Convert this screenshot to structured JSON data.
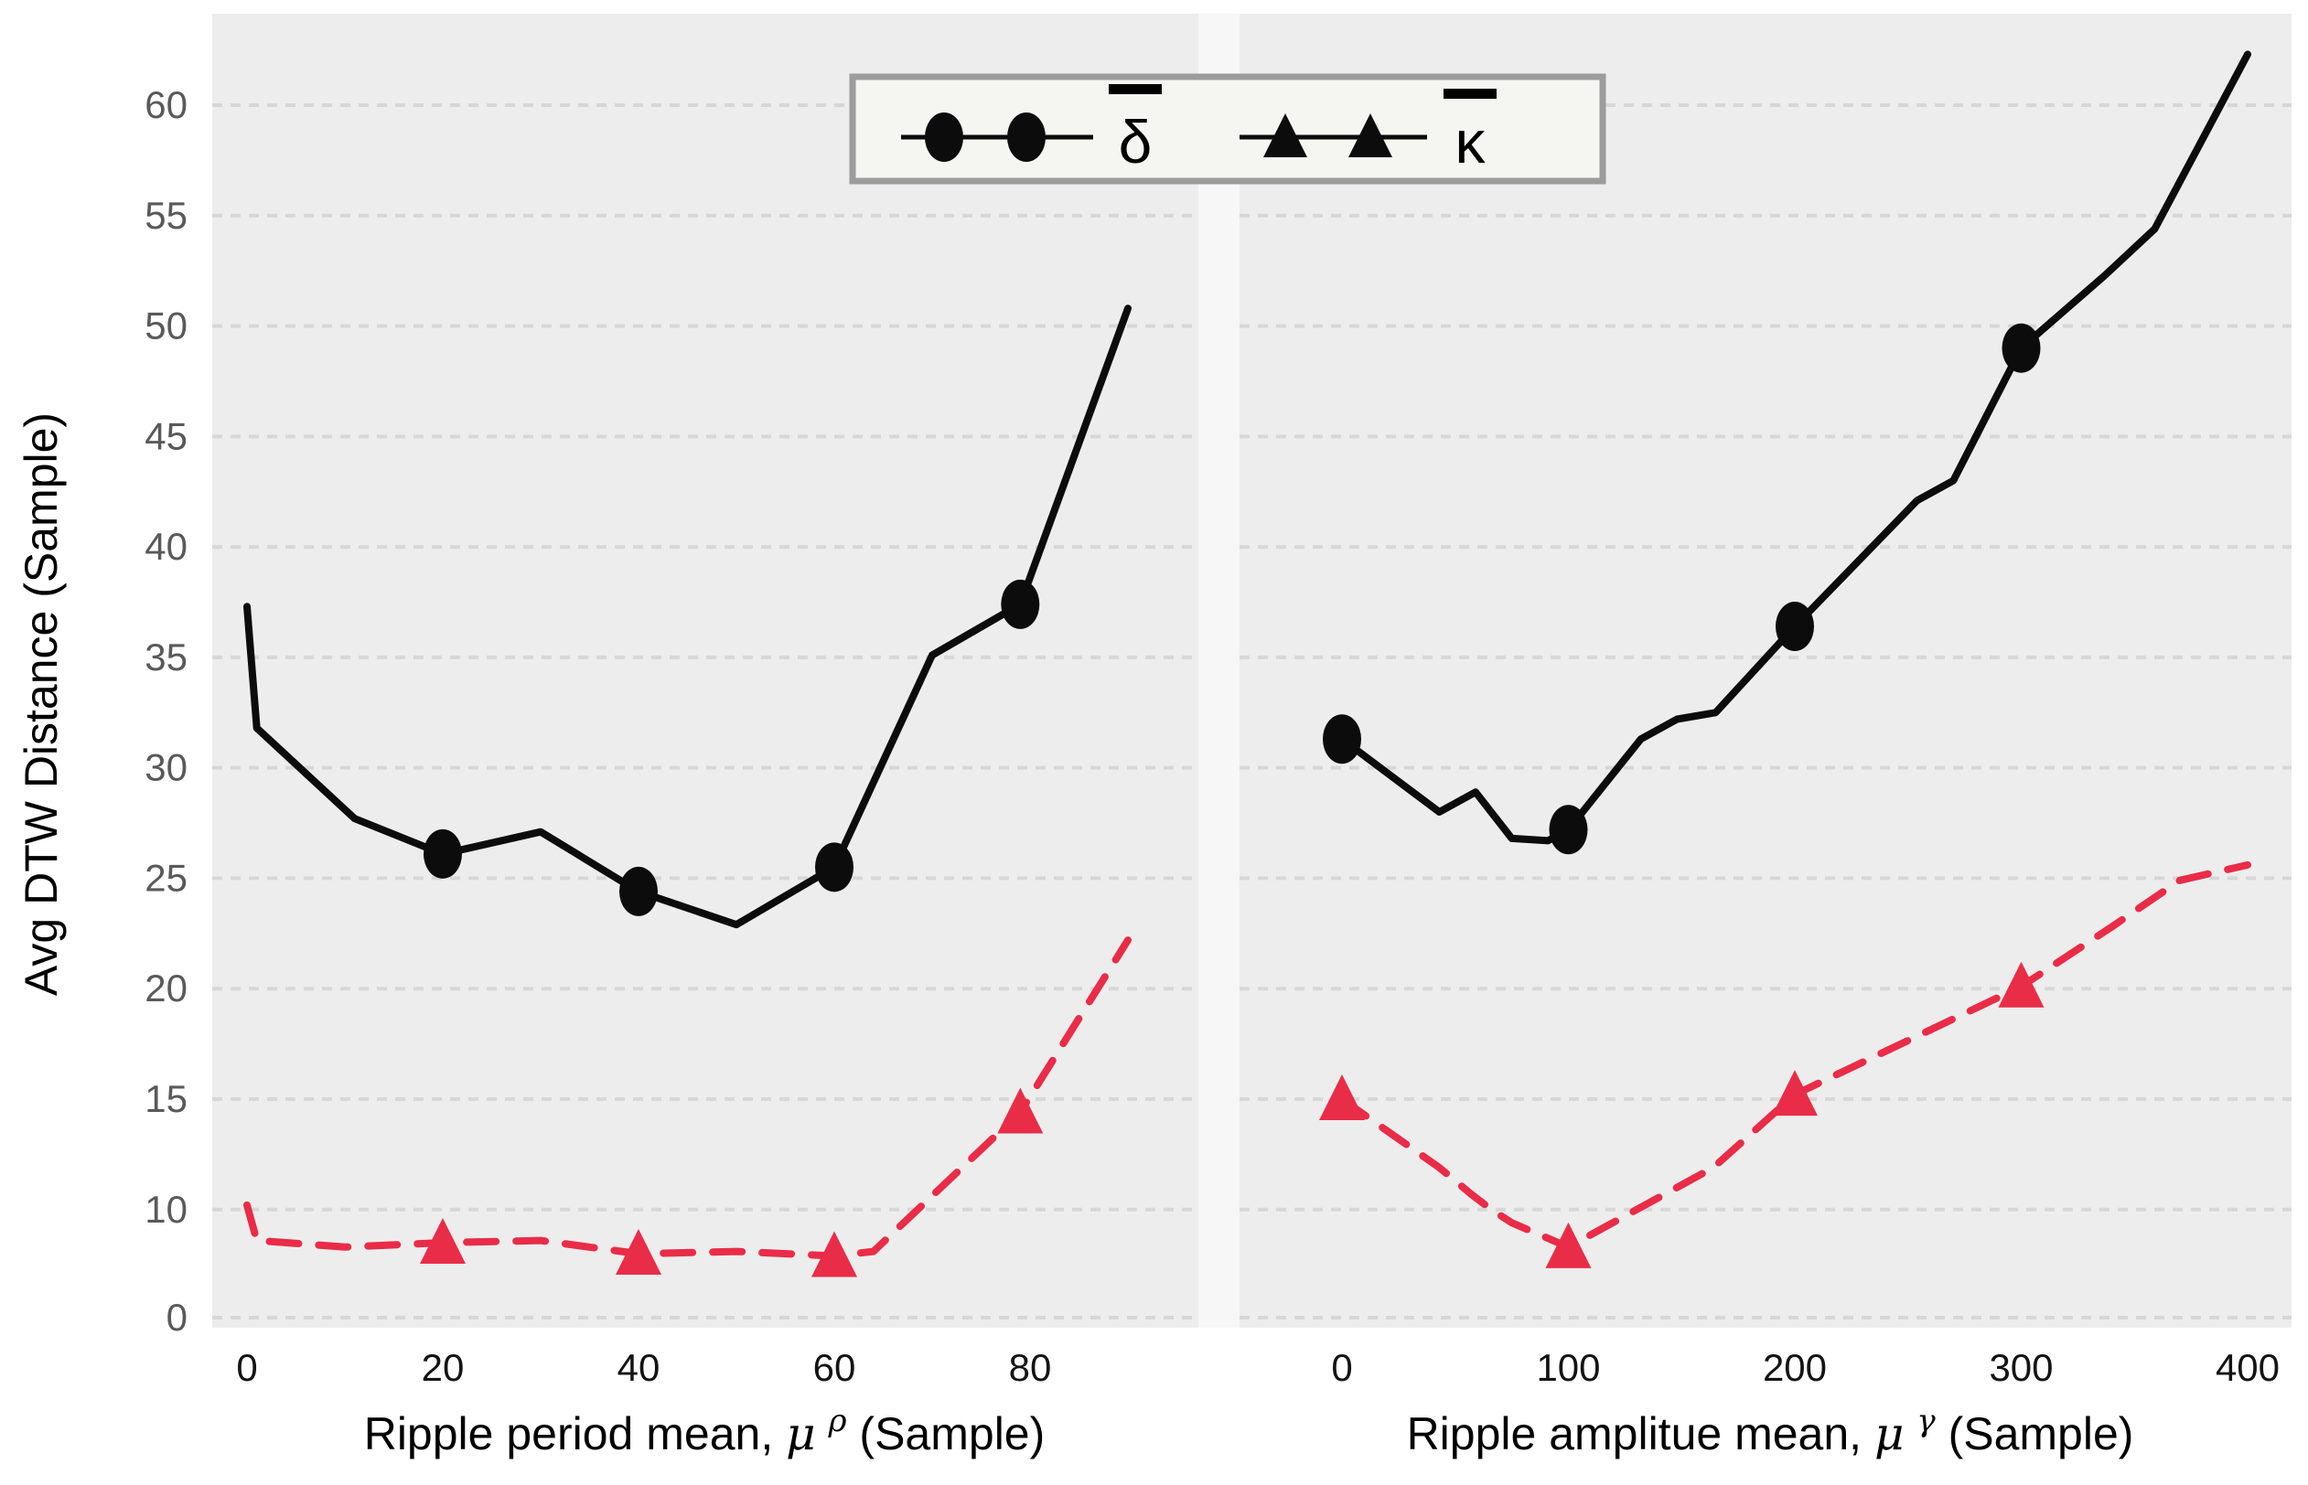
{
  "chart_data": {
    "type": "line",
    "title": "",
    "ylabel": "Avg DTW Distance (Sample)",
    "yticks": [
      0,
      10,
      15,
      20,
      25,
      30,
      35,
      40,
      45,
      50,
      55,
      60
    ],
    "ylim": [
      0,
      63
    ],
    "grid": "horizontal-dashed",
    "legend_position": "top-center",
    "colors": {
      "delta": "#0c0c0c",
      "kappa": "#e92c48",
      "panel_bg": "#ededed",
      "grid": "#d7d7d7",
      "legend_border": "#9c9c9c",
      "legend_bg": "#f5f5f2",
      "ytick_text": "#5a5a5a",
      "xtick_text": "#141414"
    },
    "legend": [
      {
        "symbol": "circle-line",
        "label": "δ",
        "overbar": true
      },
      {
        "symbol": "triangle-line",
        "label": "κ",
        "overbar": true
      }
    ],
    "panels": [
      {
        "id": "left",
        "xlabel_prefix": "Ripple period mean, ",
        "xlabel_symbol": "μ",
        "xlabel_sup": "ρ",
        "xlabel_suffix": " (Sample)",
        "xticks": [
          0,
          20,
          40,
          60,
          80
        ],
        "xlim": [
          -3,
          97
        ],
        "series": [
          {
            "name": "delta",
            "marker": "circle",
            "dash": "solid",
            "points": [
              [
                0,
                37.3
              ],
              [
                1,
                31.8
              ],
              [
                11,
                27.7
              ],
              [
                20,
                26.1
              ],
              [
                30,
                27.1
              ],
              [
                40,
                24.4
              ],
              [
                50,
                22.9
              ],
              [
                60,
                25.5
              ],
              [
                70,
                35.1
              ],
              [
                79,
                37.4
              ],
              [
                90,
                50.8
              ]
            ],
            "markers": [
              [
                20,
                26.1
              ],
              [
                40,
                24.4
              ],
              [
                60,
                25.5
              ],
              [
                79,
                37.4
              ]
            ]
          },
          {
            "name": "kappa",
            "marker": "triangle",
            "dash": "dashed",
            "points": [
              [
                0,
                10.2
              ],
              [
                1,
                8.6
              ],
              [
                10,
                8.3
              ],
              [
                20,
                8.5
              ],
              [
                30,
                8.6
              ],
              [
                40,
                8.0
              ],
              [
                50,
                8.1
              ],
              [
                60,
                7.9
              ],
              [
                64,
                8.1
              ],
              [
                79,
                14.4
              ],
              [
                90,
                22.2
              ]
            ],
            "markers": [
              [
                20,
                8.5
              ],
              [
                40,
                8.0
              ],
              [
                60,
                7.9
              ],
              [
                79,
                14.4
              ]
            ]
          }
        ]
      },
      {
        "id": "right",
        "xlabel_prefix": "Ripple amplitue mean, ",
        "xlabel_symbol": "μ",
        "xlabel_sup": "γ",
        "xlabel_suffix": " (Sample)",
        "xticks": [
          0,
          100,
          200,
          300,
          400
        ],
        "xlim": [
          -45,
          420
        ],
        "series": [
          {
            "name": "delta",
            "marker": "circle",
            "dash": "solid",
            "points": [
              [
                0,
                31.3
              ],
              [
                43,
                28.0
              ],
              [
                59,
                28.9
              ],
              [
                75,
                26.8
              ],
              [
                91,
                26.7
              ],
              [
                100,
                27.2
              ],
              [
                132,
                31.3
              ],
              [
                148,
                32.2
              ],
              [
                165,
                32.5
              ],
              [
                200,
                36.4
              ],
              [
                254,
                42.1
              ],
              [
                270,
                43.0
              ],
              [
                300,
                49.0
              ],
              [
                337,
                52.3
              ],
              [
                359,
                54.4
              ],
              [
                400,
                62.3
              ]
            ],
            "markers": [
              [
                0,
                31.3
              ],
              [
                100,
                27.2
              ],
              [
                200,
                36.4
              ],
              [
                300,
                49.0
              ]
            ]
          },
          {
            "name": "kappa",
            "marker": "triangle",
            "dash": "dashed",
            "points": [
              [
                0,
                15.0
              ],
              [
                43,
                11.9
              ],
              [
                57,
                10.7
              ],
              [
                66,
                10.0
              ],
              [
                75,
                9.4
              ],
              [
                100,
                8.3
              ],
              [
                164,
                11.9
              ],
              [
                200,
                15.2
              ],
              [
                300,
                20.1
              ],
              [
                340,
                22.8
              ],
              [
                370,
                24.9
              ],
              [
                400,
                25.6
              ]
            ],
            "markers": [
              [
                0,
                15.0
              ],
              [
                100,
                8.3
              ],
              [
                200,
                15.2
              ],
              [
                300,
                20.1
              ]
            ]
          }
        ]
      }
    ]
  }
}
